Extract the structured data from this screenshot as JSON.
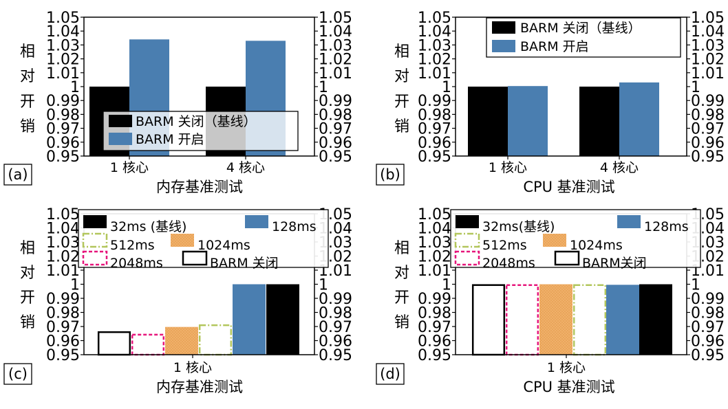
{
  "chart_data": [
    {
      "type": "bar",
      "panel": "(a)",
      "xlabel": "内存基准测试",
      "ylabel": "相对开销",
      "categories": [
        "1 核心",
        "4 核心"
      ],
      "series": [
        {
          "name": "BARM 关闭（基线）",
          "color": "#000000",
          "values": [
            1.0,
            1.0
          ]
        },
        {
          "name": "BARM 开启",
          "color": "#4a7eb0",
          "values": [
            1.034,
            1.033
          ]
        }
      ],
      "ylim": [
        0.95,
        1.05
      ],
      "yticks": [
        "0.95",
        "0.96",
        "0.97",
        "0.98",
        "0.99",
        "1",
        "1.01",
        "1.02",
        "1.03",
        "1.04",
        "1.05"
      ],
      "legend": "bottom"
    },
    {
      "type": "bar",
      "panel": "(b)",
      "xlabel": "CPU 基准测试",
      "ylabel": "相对开销",
      "categories": [
        "1 核心",
        "4 核心"
      ],
      "series": [
        {
          "name": "BARM 关闭（基线）",
          "color": "#000000",
          "values": [
            1.0,
            1.0
          ]
        },
        {
          "name": "BARM 开启",
          "color": "#4a7eb0",
          "values": [
            1.0004,
            1.003
          ]
        }
      ],
      "ylim": [
        0.95,
        1.05
      ],
      "yticks": [
        "0.95",
        "0.96",
        "0.97",
        "0.98",
        "0.99",
        "1",
        "1.01",
        "1.02",
        "1.03",
        "1.04",
        "1.05"
      ],
      "legend": "top-right"
    },
    {
      "type": "bar",
      "panel": "(c)",
      "xlabel": "内存基准测试",
      "ylabel": "相对开销",
      "categories": [
        "1 核心"
      ],
      "series": [
        {
          "name": "BARM 关闭",
          "style": "outline",
          "values": [
            0.9666
          ]
        },
        {
          "name": "2048ms",
          "style": "dashed-magenta",
          "values": [
            0.9648
          ]
        },
        {
          "name": "1024ms",
          "style": "orange",
          "values": [
            0.9697
          ]
        },
        {
          "name": "512ms",
          "style": "dashdot-green",
          "values": [
            0.9715
          ]
        },
        {
          "name": "128ms",
          "style": "blue",
          "values": [
            1.0
          ]
        },
        {
          "name": "32ms (基线)",
          "style": "black",
          "values": [
            1.0
          ]
        }
      ],
      "ylim": [
        0.95,
        1.05
      ],
      "yticks": [
        "0.95",
        "0.96",
        "0.97",
        "0.98",
        "0.99",
        "1",
        "1.01",
        "1.02",
        "1.03",
        "1.04",
        "1.05"
      ],
      "legend": "top"
    },
    {
      "type": "bar",
      "panel": "(d)",
      "xlabel": "CPU 基准测试",
      "ylabel": "相对开销",
      "categories": [
        "1 核心"
      ],
      "series": [
        {
          "name": "BARM关闭",
          "style": "outline",
          "values": [
            1.0
          ]
        },
        {
          "name": "2048ms",
          "style": "dashed-magenta",
          "values": [
            1.0
          ]
        },
        {
          "name": "1024ms",
          "style": "orange",
          "values": [
            1.0
          ]
        },
        {
          "name": "512ms",
          "style": "dashdot-green",
          "values": [
            1.0
          ]
        },
        {
          "name": "128ms",
          "style": "blue",
          "values": [
            0.9996
          ]
        },
        {
          "name": "32ms(基线)",
          "style": "black",
          "values": [
            1.0
          ]
        }
      ],
      "ylim": [
        0.95,
        1.05
      ],
      "yticks": [
        "0.95",
        "0.96",
        "0.97",
        "0.98",
        "0.99",
        "1",
        "1.01",
        "1.02",
        "1.03",
        "1.04",
        "1.05"
      ],
      "legend": "top"
    }
  ],
  "colors": {
    "black": "#000000",
    "blue": "#4a7eb0",
    "orange": "#eca95d",
    "green": "#b2c65c",
    "magenta": "#e6157b"
  }
}
